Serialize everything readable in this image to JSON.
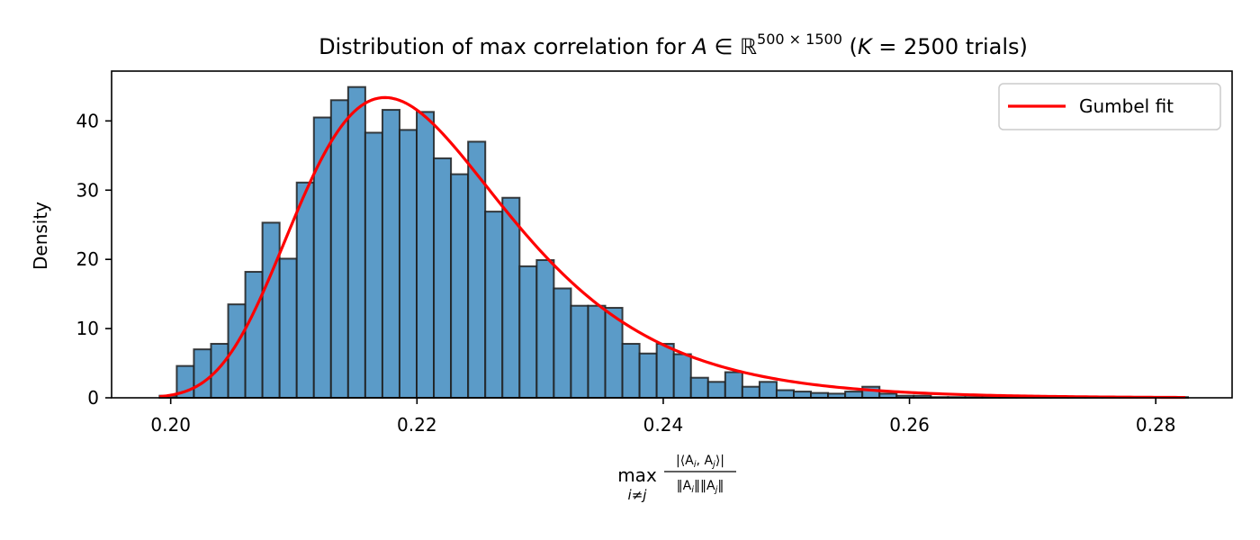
{
  "chart_data": {
    "type": "bar",
    "title_parts": {
      "prefix": "Distribution of max correlation for ",
      "var": "A",
      "member": " ∈ ",
      "field": "ℝ",
      "exponent": "500 × 1500",
      "suffix_open": " (",
      "k_var": "K",
      "k_eq": " = 2500 trials)"
    },
    "ylabel": "Density",
    "xlabel_parts": {
      "max": "max",
      "subscript": "i≠j",
      "numerator": "|⟨A",
      "num_i": "i",
      "num_sep": ", A",
      "num_j": "j",
      "num_close": "⟩|",
      "denominator_a": "‖A",
      "den_i": "i",
      "denominator_b": "‖‖A",
      "den_j": "j",
      "denominator_c": "‖"
    },
    "xlim": [
      0.1952,
      0.2862
    ],
    "ylim": [
      0,
      47.2
    ],
    "xticks": [
      0.2,
      0.22,
      0.24,
      0.26,
      0.28
    ],
    "xtick_labels": [
      "0.20",
      "0.22",
      "0.24",
      "0.26",
      "0.28"
    ],
    "yticks": [
      0,
      10,
      20,
      30,
      40
    ],
    "ytick_labels": [
      "0",
      "10",
      "20",
      "30",
      "40"
    ],
    "bins": {
      "start": 0.1991,
      "width": 0.001392,
      "values": [
        0.3,
        4.6,
        7.0,
        7.8,
        13.5,
        18.2,
        25.3,
        20.1,
        31.1,
        40.5,
        43.0,
        44.9,
        38.3,
        41.6,
        38.7,
        41.3,
        34.6,
        32.3,
        37.0,
        26.9,
        28.9,
        19.0,
        19.9,
        15.8,
        13.3,
        13.3,
        13.0,
        7.8,
        6.4,
        7.8,
        6.3,
        2.9,
        2.3,
        3.7,
        1.6,
        2.3,
        1.1,
        0.9,
        0.7,
        0.6,
        0.9,
        1.6,
        0.6,
        0.3,
        0.3,
        0.1,
        0.1,
        0.1,
        0.1,
        0.1,
        0.1,
        0.1,
        0.1,
        0.1,
        0.1,
        0.1,
        0.1,
        0.1,
        0.1,
        0.1
      ]
    },
    "fit": {
      "name": "Gumbel fit",
      "distribution": "gumbel_r",
      "loc": 0.2174,
      "scale": 0.00848,
      "x_range": [
        0.1991,
        0.2824
      ]
    },
    "legend": {
      "label": "Gumbel fit",
      "placement": "top-right"
    },
    "grid": false,
    "colors": {
      "bar_fill": "#5b9bc8",
      "bar_edge": "#1f1f1f",
      "fit_line": "#ff0000",
      "axis": "#000000"
    }
  }
}
